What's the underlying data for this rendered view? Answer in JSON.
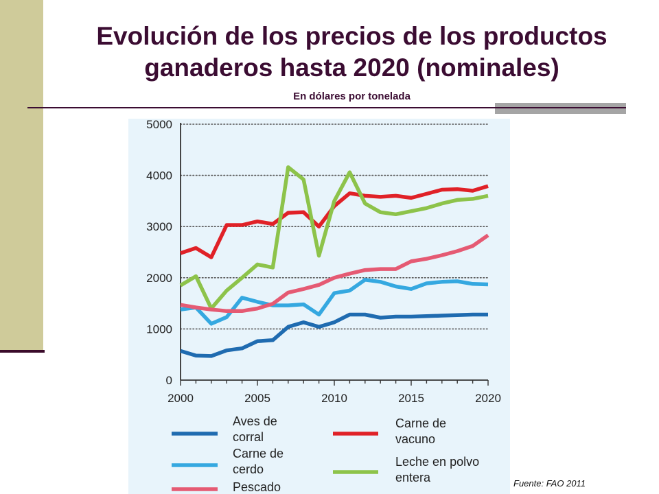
{
  "header": {
    "title": "Evolución de los precios de los productos ganaderos hasta 2020 (nominales)",
    "subtitle": "En dólares por tonelada"
  },
  "source": "Fuente: FAO 2011",
  "chart_data": {
    "type": "line",
    "title": "Evolución de los precios de los productos ganaderos hasta 2020 (nominales)",
    "subtitle": "En dólares por tonelada",
    "xlabel": "",
    "ylabel": "",
    "xlim": [
      2000,
      2020
    ],
    "ylim": [
      0,
      5000
    ],
    "x_ticks": [
      2000,
      2005,
      2010,
      2015,
      2020
    ],
    "y_ticks": [
      0,
      1000,
      2000,
      3000,
      4000,
      5000
    ],
    "grid": "horizontal dotted",
    "legend_position": "bottom",
    "x": [
      2000,
      2001,
      2002,
      2003,
      2004,
      2005,
      2006,
      2007,
      2008,
      2009,
      2010,
      2011,
      2012,
      2013,
      2014,
      2015,
      2016,
      2017,
      2018,
      2019,
      2020
    ],
    "series": [
      {
        "name": "Aves de corral",
        "color": "#1f6bb0",
        "values": [
          570,
          480,
          470,
          580,
          620,
          760,
          780,
          1040,
          1130,
          1040,
          1130,
          1280,
          1280,
          1220,
          1240,
          1240,
          1250,
          1260,
          1270,
          1280,
          1280
        ]
      },
      {
        "name": "Carne de vacuno",
        "color": "#e02127",
        "values": [
          2480,
          2580,
          2400,
          3030,
          3030,
          3100,
          3050,
          3270,
          3280,
          3000,
          3400,
          3650,
          3600,
          3580,
          3600,
          3560,
          3640,
          3720,
          3730,
          3700,
          3790
        ]
      },
      {
        "name": "Carne de cerdo",
        "color": "#35a8e0",
        "values": [
          1380,
          1420,
          1100,
          1230,
          1610,
          1530,
          1460,
          1460,
          1480,
          1280,
          1700,
          1750,
          1960,
          1920,
          1830,
          1780,
          1890,
          1920,
          1930,
          1880,
          1870
        ]
      },
      {
        "name": "Leche en polvo entera",
        "color": "#8dc34a",
        "values": [
          1850,
          2030,
          1400,
          1750,
          2000,
          2260,
          2200,
          4160,
          3920,
          2430,
          3500,
          4060,
          3450,
          3280,
          3240,
          3300,
          3360,
          3450,
          3520,
          3540,
          3600
        ]
      },
      {
        "name": "Pescado",
        "color": "#e55a73",
        "values": [
          1470,
          1420,
          1380,
          1350,
          1350,
          1400,
          1490,
          1710,
          1780,
          1860,
          2000,
          2080,
          2150,
          2170,
          2170,
          2320,
          2370,
          2440,
          2520,
          2620,
          2830
        ]
      }
    ]
  }
}
